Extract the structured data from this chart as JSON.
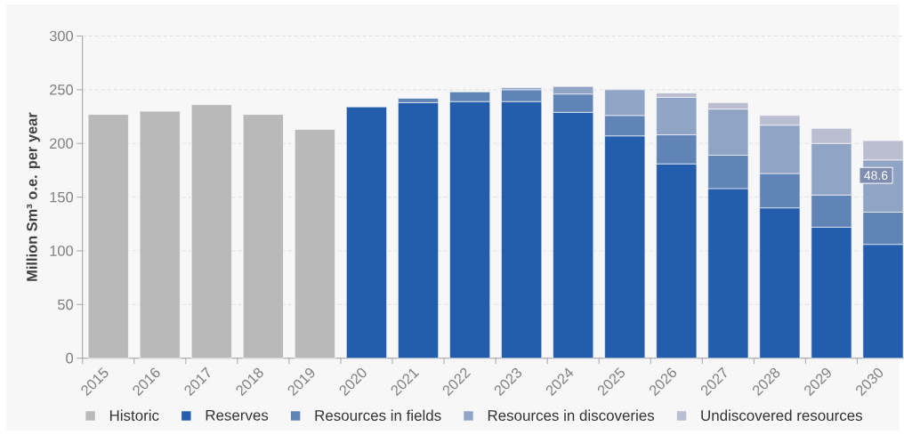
{
  "chart_data": {
    "type": "bar",
    "stacked": true,
    "ylabel": "Million Sm³ o.e. per year",
    "categories": [
      "2015",
      "2016",
      "2017",
      "2018",
      "2019",
      "2020",
      "2021",
      "2022",
      "2023",
      "2024",
      "2025",
      "2026",
      "2027",
      "2028",
      "2029",
      "2030"
    ],
    "series": [
      {
        "name": "Historic",
        "color": "#b9b9b9",
        "values": [
          227,
          230,
          236,
          227,
          213,
          null,
          null,
          null,
          null,
          null,
          null,
          null,
          null,
          null,
          null,
          null
        ]
      },
      {
        "name": "Reserves",
        "color": "#255dad",
        "values": [
          null,
          null,
          null,
          null,
          null,
          234,
          238,
          239,
          239,
          229,
          207,
          181,
          158,
          140,
          122,
          106
        ]
      },
      {
        "name": "Resources in fields",
        "color": "#6084b6",
        "values": [
          null,
          null,
          null,
          null,
          null,
          null,
          4,
          9,
          11,
          17,
          19,
          27,
          31,
          32,
          30,
          30
        ]
      },
      {
        "name": "Resources in discoveries",
        "color": "#90a5c5",
        "values": [
          null,
          null,
          null,
          null,
          null,
          null,
          null,
          null,
          2,
          7,
          24,
          35,
          43,
          45,
          48,
          48.6
        ],
        "value_labels": [
          null,
          null,
          null,
          null,
          null,
          null,
          null,
          null,
          null,
          null,
          null,
          null,
          null,
          null,
          null,
          "48.6"
        ]
      },
      {
        "name": "Undiscovered resources",
        "color": "#bbbdd1",
        "values": [
          null,
          null,
          null,
          null,
          null,
          null,
          null,
          null,
          null,
          null,
          null,
          4,
          6,
          9,
          14,
          18
        ]
      }
    ],
    "ylim": [
      0,
      300
    ],
    "yticks": [
      0,
      50,
      100,
      150,
      200,
      250,
      300
    ],
    "grid": "y",
    "legend": "bottom"
  }
}
